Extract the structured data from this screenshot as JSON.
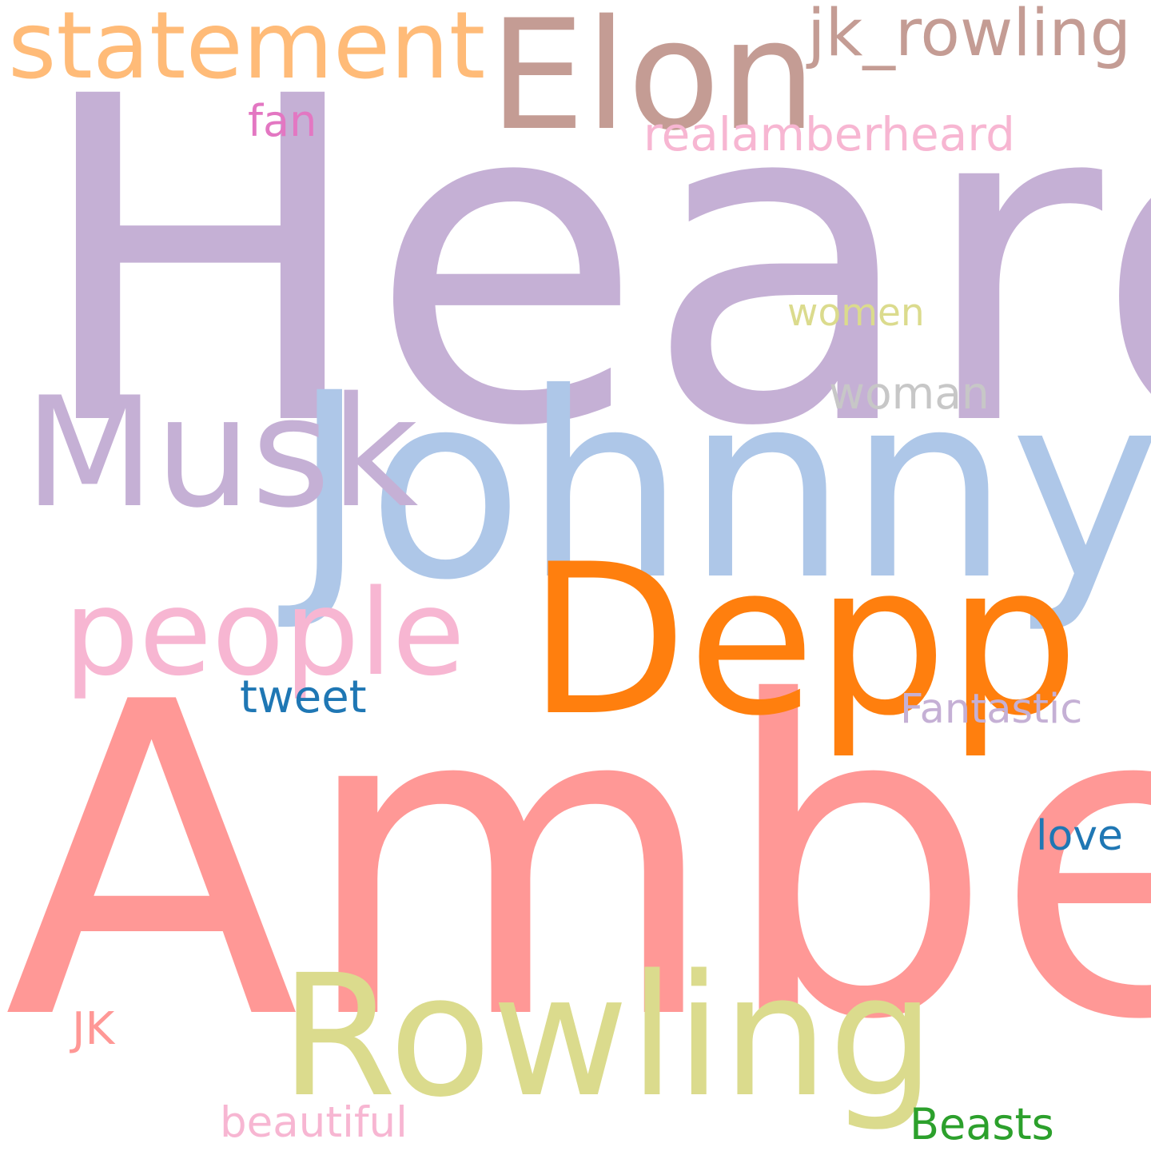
{
  "words": [
    {
      "text": "Heard",
      "color": "#c5b0d5"
    },
    {
      "text": "Amber",
      "color": "#ff9896"
    },
    {
      "text": "Johnny",
      "color": "#aec7e8"
    },
    {
      "text": "Elon",
      "color": "#c49c94"
    },
    {
      "text": "Depp",
      "color": "#ff7f0e"
    },
    {
      "text": "Rowling",
      "color": "#dbdb8d"
    },
    {
      "text": "Musk",
      "color": "#c5b0d5"
    },
    {
      "text": "people",
      "color": "#f7b6d2"
    },
    {
      "text": "statement",
      "color": "#ffbb78"
    },
    {
      "text": "jk_rowling",
      "color": "#c49c94"
    },
    {
      "text": "realamberheard",
      "color": "#f7b6d2"
    },
    {
      "text": "fan",
      "color": "#e377c2"
    },
    {
      "text": "women",
      "color": "#dbdb8d"
    },
    {
      "text": "woman",
      "color": "#c7c7c7"
    },
    {
      "text": "tweet",
      "color": "#1f77b4"
    },
    {
      "text": "Fantastic",
      "color": "#c5b0d5"
    },
    {
      "text": "love",
      "color": "#1f77b4"
    },
    {
      "text": "JK",
      "color": "#ff9896"
    },
    {
      "text": "beautiful",
      "color": "#f7b6d2"
    },
    {
      "text": "Beasts",
      "color": "#2ca02c"
    }
  ]
}
